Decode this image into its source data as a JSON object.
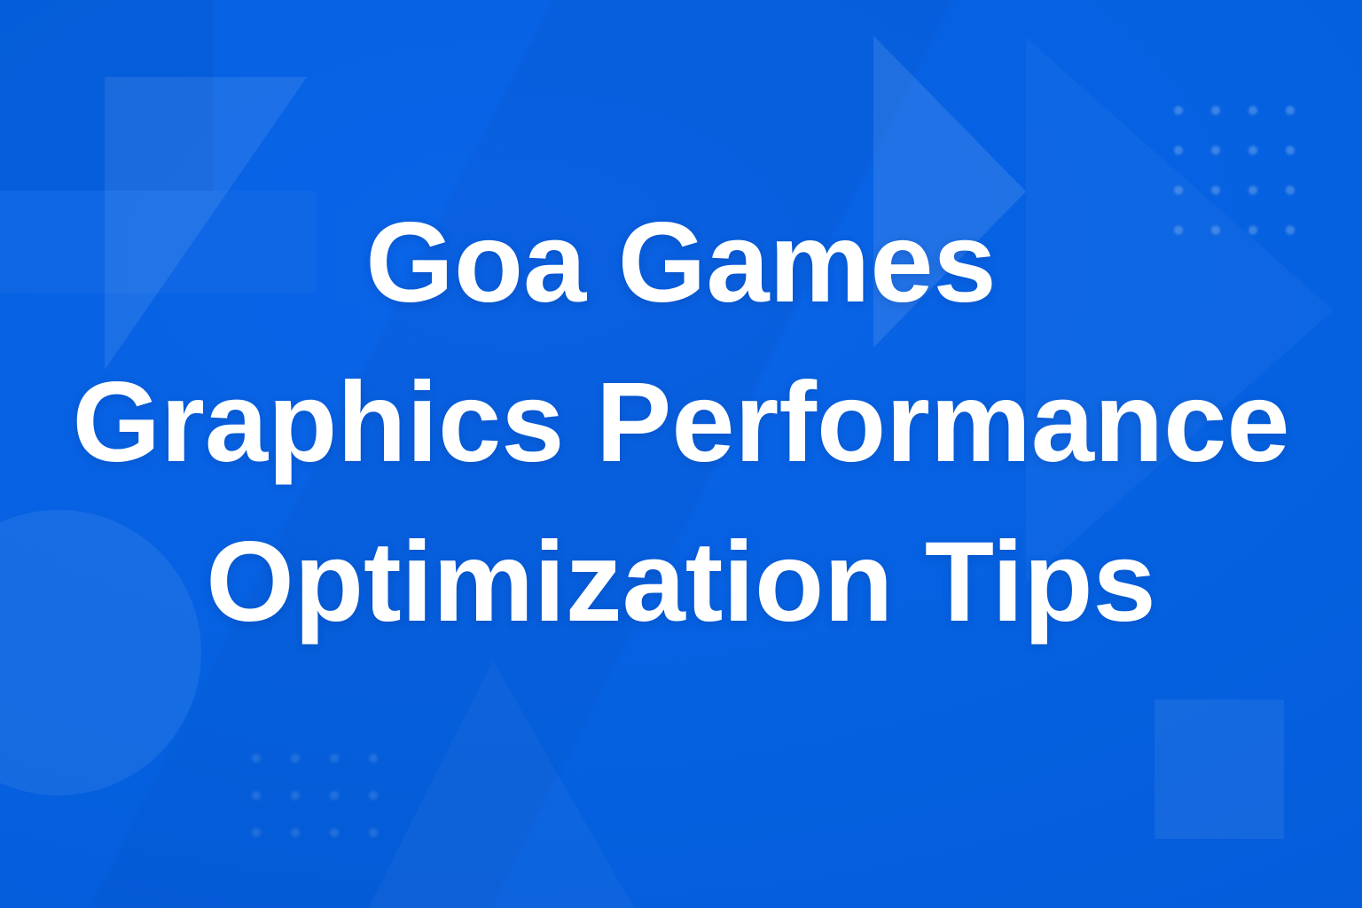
{
  "banner": {
    "title_lines": [
      "Goa Games",
      "Graphics Performance",
      "Optimization Tips"
    ],
    "colors": {
      "background": "#0560DE",
      "text": "#FFFFFF",
      "shape_tint_light": "#FFFFFF",
      "shape_tint_dark": "#031C62"
    }
  }
}
